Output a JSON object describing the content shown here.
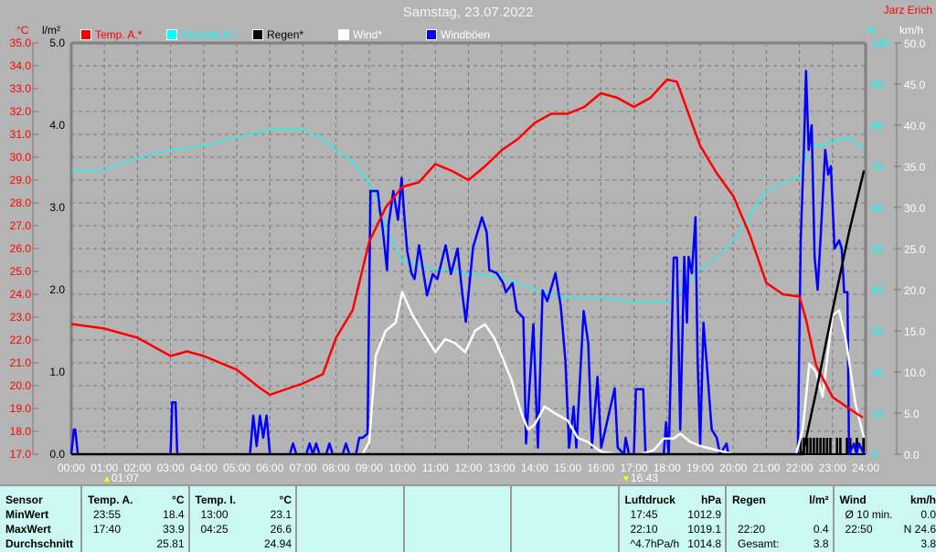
{
  "header": {
    "title": "Samstag, 23.07.2022",
    "author": "Jarz Erich"
  },
  "units": {
    "temp": "°C",
    "rain": "l/m²",
    "humidity": "%",
    "wind": "km/h"
  },
  "legend": [
    {
      "label": "Temp. A.*",
      "color": "#ff0000"
    },
    {
      "label": "Feuchte A.*",
      "color": "#00ffff"
    },
    {
      "label": "Regen*",
      "color": "#000000"
    },
    {
      "label": "Wind*",
      "color": "#ffffff"
    },
    {
      "label": "Windböen",
      "color": "#0000ff"
    }
  ],
  "markers": [
    {
      "label": "01:07"
    },
    {
      "label": "16:43"
    }
  ],
  "chart_data": {
    "type": "line",
    "title": "Samstag, 23.07.2022",
    "grid": true,
    "legend_position": "top",
    "x_ticks": [
      "00:00",
      "01:00",
      "02:00",
      "03:00",
      "04:00",
      "05:00",
      "06:00",
      "07:00",
      "08:00",
      "09:00",
      "10:00",
      "11:00",
      "12:00",
      "13:00",
      "14:00",
      "15:00",
      "16:00",
      "17:00",
      "18:00",
      "19:00",
      "20:00",
      "21:00",
      "22:00",
      "23:00",
      "24:00"
    ],
    "xlim": [
      "00:00",
      "24:00"
    ],
    "axes": {
      "temp": {
        "label": "°C",
        "ylim": [
          17,
          35
        ],
        "ticks": [
          "17.0",
          "18.0",
          "19.0",
          "20.0",
          "21.0",
          "22.0",
          "23.0",
          "24.0",
          "25.0",
          "26.0",
          "27.0",
          "28.0",
          "29.0",
          "30.0",
          "31.0",
          "32.0",
          "33.0",
          "34.0",
          "35.0"
        ],
        "color": "#ff0000"
      },
      "rain": {
        "label": "l/m²",
        "ylim": [
          0,
          5
        ],
        "ticks": [
          "0.0",
          "1.0",
          "2.0",
          "3.0",
          "4.0",
          "5.0"
        ],
        "color": "#000000"
      },
      "humidity": {
        "label": "%",
        "ylim": [
          0,
          100
        ],
        "ticks": [
          "0",
          "10",
          "20",
          "30",
          "40",
          "50",
          "60",
          "70",
          "80",
          "90",
          "100"
        ],
        "color": "#00ffff"
      },
      "wind": {
        "label": "km/h",
        "ylim": [
          0,
          50
        ],
        "ticks": [
          "0.0",
          "5.0",
          "10.0",
          "15.0",
          "20.0",
          "25.0",
          "30.0",
          "35.0",
          "40.0",
          "45.0",
          "50.0"
        ],
        "color": "#ffffff"
      }
    },
    "series": [
      {
        "name": "Temp. A.*",
        "axis": "temp",
        "color": "#ff0000",
        "x": [
          0,
          1,
          2,
          3,
          3.5,
          4,
          5,
          5.7,
          6,
          7,
          7.6,
          8,
          8.5,
          9,
          9.5,
          10,
          10.5,
          11,
          11.5,
          12,
          12.5,
          13,
          13.5,
          14,
          14.5,
          15,
          15.5,
          16,
          16.5,
          17,
          17.5,
          18,
          18.3,
          19,
          19.5,
          20,
          20.5,
          21,
          21.5,
          22,
          22.2,
          22.5,
          23,
          23.5,
          23.92
        ],
        "y": [
          22.7,
          22.5,
          22.1,
          21.3,
          21.5,
          21.3,
          20.7,
          19.9,
          19.6,
          20.1,
          20.5,
          22.1,
          23.3,
          26.3,
          27.8,
          28.7,
          28.9,
          29.7,
          29.4,
          29.0,
          29.6,
          30.3,
          30.8,
          31.5,
          31.9,
          31.9,
          32.2,
          32.8,
          32.6,
          32.2,
          32.6,
          33.4,
          33.3,
          30.5,
          29.3,
          28.3,
          26.6,
          24.5,
          24.0,
          23.9,
          22.9,
          20.9,
          19.5,
          19.0,
          18.6
        ]
      },
      {
        "name": "Feuchte A.*",
        "axis": "humidity",
        "color": "#00ffff",
        "x": [
          0,
          1,
          2,
          3,
          4,
          5,
          6,
          7,
          7.5,
          8,
          8.5,
          9,
          9.2,
          9.5,
          10,
          11,
          12,
          13,
          14,
          15,
          16,
          17,
          18,
          18.5,
          19,
          19.5,
          20,
          20.5,
          21,
          21.8,
          22,
          22.3,
          22.6,
          23,
          23.5,
          23.95
        ],
        "y": [
          69,
          69,
          72,
          74,
          75,
          77,
          79,
          79,
          77,
          74,
          71,
          66,
          63,
          55,
          47,
          45,
          44,
          43,
          40,
          38,
          38,
          37,
          37,
          41,
          45,
          48,
          52,
          58,
          64,
          67,
          67,
          75,
          75,
          76,
          77,
          74
        ]
      },
      {
        "name": "Regen*",
        "axis": "rain",
        "color": "#000000",
        "x": [
          0,
          22.1,
          22.5,
          23,
          23.5,
          23.95
        ],
        "y": [
          0,
          0,
          0.75,
          1.75,
          2.7,
          3.45
        ]
      },
      {
        "name": "Wind*",
        "axis": "wind",
        "color": "#ffffff",
        "x": [
          0,
          8.8,
          9.0,
          9.2,
          9.5,
          9.8,
          10.0,
          10.3,
          10.6,
          11.0,
          11.3,
          11.6,
          11.9,
          12.2,
          12.5,
          12.8,
          13.0,
          13.3,
          13.6,
          13.8,
          14.0,
          14.3,
          14.6,
          15.0,
          15.3,
          15.6,
          16.0,
          16.5,
          17.2,
          17.6,
          17.9,
          18.2,
          18.4,
          18.7,
          19.0,
          19.5,
          20.0,
          21.9,
          22.1,
          22.3,
          22.5,
          22.7,
          23.0,
          23.2,
          23.4,
          23.7,
          23.95
        ],
        "y": [
          0,
          0,
          1.5,
          12,
          15,
          16,
          19.7,
          17,
          15,
          12.4,
          14,
          13.5,
          12.4,
          15,
          15.8,
          14,
          12,
          9,
          5,
          3,
          3.6,
          5.8,
          5,
          4.1,
          2,
          1.5,
          0.3,
          0,
          0,
          0.5,
          1.9,
          1.9,
          2.5,
          1.5,
          1,
          0.5,
          0,
          0,
          3,
          11,
          10,
          7,
          16.9,
          17.5,
          14,
          6,
          2
        ]
      },
      {
        "name": "Windböen",
        "axis": "wind",
        "color": "#0000ff",
        "x": [
          0,
          0.08,
          0.12,
          0.2,
          3.0,
          3.05,
          3.15,
          3.2,
          5.4,
          5.5,
          5.6,
          5.7,
          5.8,
          5.9,
          6.0,
          6.6,
          6.7,
          6.8,
          7.1,
          7.2,
          7.3,
          7.4,
          7.5,
          7.7,
          7.8,
          7.9,
          8.2,
          8.3,
          8.4,
          8.6,
          8.7,
          8.8,
          8.95,
          9.04,
          9.26,
          9.32,
          9.4,
          9.54,
          9.59,
          9.73,
          9.87,
          9.98,
          10.06,
          10.15,
          10.28,
          10.37,
          10.51,
          10.75,
          10.92,
          11.06,
          11.31,
          11.47,
          11.67,
          11.81,
          11.92,
          12.14,
          12.41,
          12.55,
          12.63,
          12.86,
          13.05,
          13.13,
          13.33,
          13.46,
          13.66,
          13.74,
          13.96,
          14.1,
          14.24,
          14.38,
          14.63,
          14.79,
          14.93,
          15.04,
          15.18,
          15.26,
          15.48,
          15.62,
          15.73,
          15.9,
          16.01,
          16.42,
          16.51,
          16.7,
          16.75,
          16.85,
          17.0,
          17.06,
          17.28,
          17.35,
          17.9,
          17.97,
          18.05,
          18.2,
          18.3,
          18.4,
          18.52,
          18.6,
          18.65,
          18.75,
          18.86,
          18.92,
          19.0,
          19.1,
          19.2,
          19.35,
          19.5,
          19.6,
          19.8,
          19.85,
          21.95,
          22.04,
          22.15,
          22.2,
          22.28,
          22.37,
          22.46,
          22.55,
          22.65,
          22.78,
          22.87,
          22.95,
          23.06,
          23.2,
          23.28,
          23.35,
          23.45,
          23.5,
          23.65,
          23.72,
          23.8,
          23.95
        ],
        "y": [
          0,
          3,
          3,
          0,
          0,
          6.3,
          6.3,
          0,
          0,
          4.7,
          1,
          4.7,
          2,
          4.7,
          0,
          0,
          1.3,
          0,
          0,
          1.3,
          0,
          1.3,
          0,
          0,
          1.3,
          0,
          0,
          1.3,
          0,
          0,
          2,
          2,
          2.5,
          32,
          32,
          29.7,
          27.7,
          22.4,
          28,
          32,
          28.5,
          33.6,
          29,
          24.7,
          22,
          21.3,
          25.4,
          19.3,
          21.9,
          21.3,
          25.4,
          21.9,
          25,
          19.7,
          16.1,
          25.2,
          28.8,
          27,
          22.4,
          22,
          20.8,
          19.7,
          20.8,
          17.4,
          16.6,
          1.3,
          15.8,
          0.8,
          19.9,
          18.6,
          22,
          18,
          11.3,
          0.8,
          5.8,
          0.8,
          17.4,
          13.5,
          0.8,
          9.4,
          0.8,
          8,
          0.8,
          0,
          2,
          0,
          0,
          7.9,
          7.9,
          0,
          0,
          3.9,
          0,
          23.9,
          23.9,
          3,
          24,
          16,
          24,
          22,
          28.8,
          12,
          1,
          16,
          11,
          3,
          2,
          0,
          1.3,
          0,
          0,
          26,
          39,
          46.6,
          37,
          40,
          24,
          20,
          27,
          37,
          34,
          35,
          25,
          26,
          25,
          19.7,
          19.7,
          0,
          1.3,
          0,
          1.3,
          0
        ]
      },
      {
        "name": "Regen (Intervall)",
        "axis": "rain",
        "color": "#000000",
        "type": "bar",
        "x": [
          22.0,
          22.1,
          22.2,
          22.3,
          22.4,
          22.5,
          22.6,
          22.7,
          22.8,
          22.9,
          23.0,
          23.1,
          23.2,
          23.3,
          23.4,
          23.5,
          23.6,
          23.7,
          23.8,
          23.9
        ],
        "y": [
          0.2,
          0.2,
          0.2,
          0.2,
          0.2,
          0.2,
          0.2,
          0.2,
          0.2,
          0.2,
          0,
          0.2,
          0.2,
          0,
          0.2,
          0.2,
          0,
          0.2,
          0,
          0.2
        ]
      }
    ]
  },
  "table": {
    "sensor": {
      "header": "Sensor",
      "rows": [
        "MinWert",
        "MaxWert",
        "Durchschnitt"
      ]
    },
    "columns": [
      {
        "header": "Temp. A.",
        "unit": "°C",
        "rows": [
          [
            "23:55",
            "18.4"
          ],
          [
            "17:40",
            "33.9"
          ],
          [
            "",
            "25.81"
          ]
        ]
      },
      {
        "header": "Temp. I.",
        "unit": "°C",
        "rows": [
          [
            "13:00",
            "23.1"
          ],
          [
            "04:25",
            "26.6"
          ],
          [
            "",
            "24.94"
          ]
        ]
      },
      {
        "header": "",
        "unit": "",
        "rows": []
      },
      {
        "header": "",
        "unit": "",
        "rows": []
      },
      {
        "header": "",
        "unit": "",
        "rows": []
      },
      {
        "header": "Luftdruck",
        "unit": "hPa",
        "rows": [
          [
            "17:45",
            "1012.9"
          ],
          [
            "22:10",
            "1019.1"
          ],
          [
            "^4.7hPa/h",
            "1014.8"
          ]
        ]
      },
      {
        "header": "Regen",
        "unit": "l/m²",
        "rows": [
          [
            "",
            ""
          ],
          [
            "22:20",
            "0.4"
          ],
          [
            "Gesamt:",
            "3.8"
          ]
        ]
      },
      {
        "header": "Wind",
        "unit": "km/h",
        "rows": [
          [
            "Ø 10 min.",
            "0.0"
          ],
          [
            "22:50",
            "N 24.6"
          ],
          [
            "",
            "3.8"
          ]
        ]
      }
    ]
  }
}
